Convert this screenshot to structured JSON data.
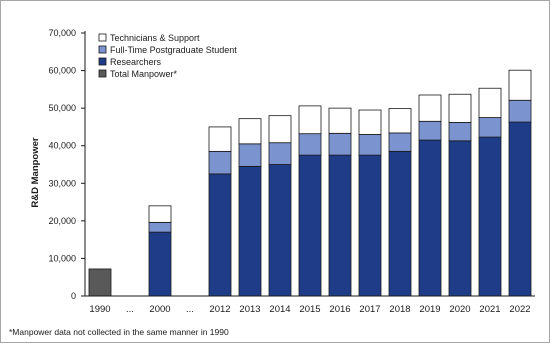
{
  "chart_data": {
    "type": "bar",
    "stacked": true,
    "title": "",
    "xlabel": "",
    "ylabel": "R&D Manpower",
    "ylim": [
      0,
      70000
    ],
    "yticks": [
      "0",
      "10,000",
      "20,000",
      "30,000",
      "40,000",
      "50,000",
      "60,000",
      "70,000"
    ],
    "ytick_values": [
      0,
      10000,
      20000,
      30000,
      40000,
      50000,
      60000,
      70000
    ],
    "grid": false,
    "legend_position": "top-left",
    "categories": [
      "1990",
      "...",
      "2000",
      "...",
      "2012",
      "2013",
      "2014",
      "2015",
      "2016",
      "2017",
      "2018",
      "2019",
      "2020",
      "2021",
      "2022"
    ],
    "series": [
      {
        "name": "Researchers",
        "color": "#1f3c88",
        "values": [
          null,
          null,
          17000,
          null,
          32500,
          34500,
          35000,
          37500,
          37500,
          37500,
          38500,
          41500,
          41300,
          42300,
          46300
        ]
      },
      {
        "name": "Full-Time Postgraduate Student",
        "color": "#7b93cf",
        "values": [
          null,
          null,
          2600,
          null,
          6000,
          6000,
          5800,
          5700,
          5800,
          5500,
          4900,
          5000,
          4900,
          5200,
          5800
        ]
      },
      {
        "name": "Technicians & Support",
        "color": "#ffffff",
        "values": [
          null,
          null,
          4400,
          null,
          6500,
          6700,
          7200,
          7400,
          6700,
          6500,
          6500,
          7000,
          7500,
          7800,
          8000
        ]
      },
      {
        "name": "Total Manpower*",
        "color": "#595959",
        "values": [
          7200,
          null,
          null,
          null,
          null,
          null,
          null,
          null,
          null,
          null,
          null,
          null,
          null,
          null,
          null
        ]
      }
    ],
    "legend_order": [
      "Technicians & Support",
      "Full-Time Postgraduate Student",
      "Researchers",
      "Total Manpower*"
    ],
    "footnote": "*Manpower data not collected in the same manner in 1990"
  }
}
